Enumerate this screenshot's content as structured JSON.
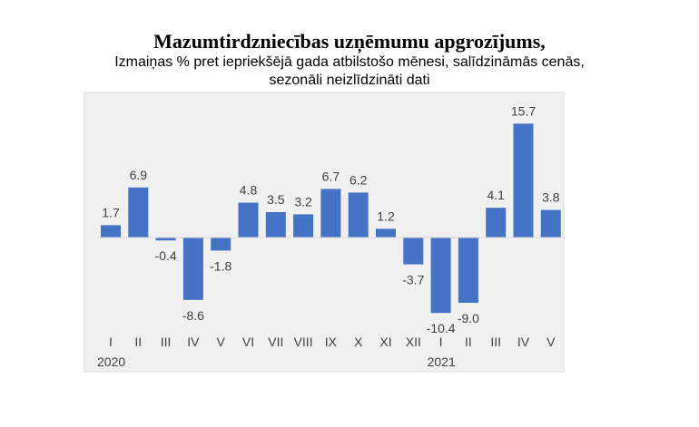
{
  "chart_data": {
    "type": "bar",
    "title": "Mazumtirdzniecības uzņēmumu apgrozījums,",
    "subtitle": [
      "Izmaiņas % pret iepriekšējā gada atbilstošo mēnesi, salīdzināmās cenās,",
      "sezonāli neizlīdzināti dati"
    ],
    "categories": [
      "I",
      "II",
      "III",
      "IV",
      "V",
      "VI",
      "VII",
      "VIII",
      "IX",
      "X",
      "XI",
      "XII",
      "I",
      "II",
      "III",
      "IV",
      "V"
    ],
    "year_labels": [
      {
        "label": "2020",
        "category_index": 0
      },
      {
        "label": "2021",
        "category_index": 12
      }
    ],
    "values": [
      1.7,
      6.9,
      -0.4,
      -8.6,
      -1.8,
      4.8,
      3.5,
      3.2,
      6.7,
      6.2,
      1.2,
      -3.7,
      -10.4,
      -9.0,
      4.1,
      15.7,
      3.8
    ],
    "data_labels": [
      "1.7",
      "6.9",
      "-0.4",
      "-8.6",
      "-1.8",
      "4.8",
      "3.5",
      "3.2",
      "6.7",
      "6.2",
      "1.2",
      "-3.7",
      "-10.4",
      "-9.0",
      "4.1",
      "15.7",
      "3.8"
    ],
    "bar_color": "#4472C4",
    "plot_background": "#F0F0F0",
    "grid": false,
    "legend": "none"
  }
}
